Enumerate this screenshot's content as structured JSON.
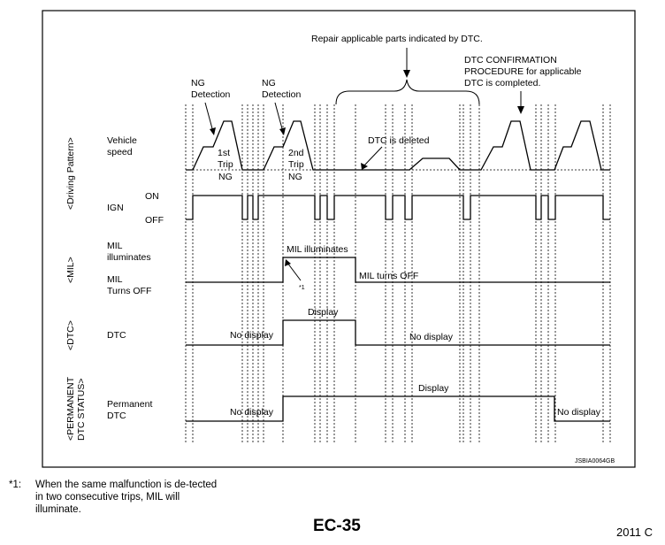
{
  "repair_label": "Repair applicable parts indicated by DTC.",
  "dtc_confirmation": [
    "DTC CONFIRMATION",
    "PROCEDURE for applicable",
    "DTC is completed."
  ],
  "ng_detection_1": [
    "NG",
    "Detection"
  ],
  "ng_detection_2": [
    "NG",
    "Detection"
  ],
  "sections": {
    "driving_pattern": "<Driving Pattern>",
    "mil": "<MIL>",
    "dtc": "<DTC>",
    "permanent": [
      "<PERMANENT",
      "DTC STATUS>"
    ]
  },
  "rows": {
    "vehicle_speed": [
      "Vehicle",
      "speed"
    ],
    "ign": "IGN",
    "ign_on": "ON",
    "ign_off": "OFF",
    "mil_illuminates": [
      "MIL",
      "illuminates"
    ],
    "mil_turns_off": [
      "MIL",
      "Turns OFF"
    ],
    "dtc": "DTC",
    "permanent_dtc": [
      "Permanent",
      "DTC"
    ]
  },
  "trip1": [
    "1st",
    "Trip",
    "NG"
  ],
  "trip2": [
    "2nd",
    "Trip",
    "NG"
  ],
  "dtc_deleted": "DTC is deleted",
  "mil_illuminates_label": "MIL illuminates",
  "mil_turns_off_label": "MIL turns OFF",
  "star1": "*1",
  "dtc_no_display_1": "No display",
  "dtc_display": "Display",
  "dtc_no_display_2": "No display",
  "perm_no_display_1": "No display",
  "perm_display": "Display",
  "perm_no_display_2": "No display",
  "figure_code": "JSBIA0064GB",
  "footnote_mark": "*1:",
  "footnote_text": "When the same malfunction is de-tected in two consecutive trips, MIL will illuminate.",
  "page_number": "EC-35",
  "year_fragment": "2011 C"
}
